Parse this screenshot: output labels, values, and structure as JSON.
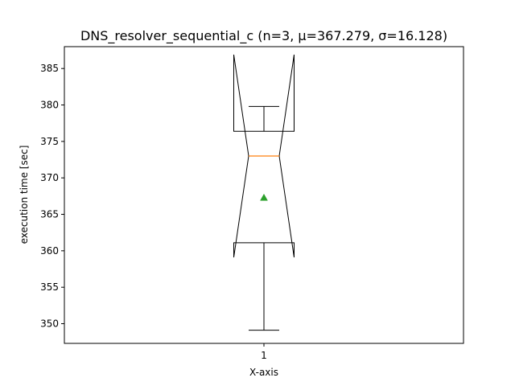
{
  "chart_data": {
    "type": "boxplot",
    "title": "DNS_resolver_sequential_c (n=3, μ=367.279, σ=16.128)",
    "xlabel": "X-axis",
    "ylabel": "execution time [sec]",
    "ylim": [
      347.3,
      388.0
    ],
    "categories": [
      "1"
    ],
    "y_ticks": [
      350,
      355,
      360,
      365,
      370,
      375,
      380,
      385
    ],
    "notched": true,
    "box": {
      "whisker_low": 349.1,
      "q1": 361.1,
      "median": 373.0,
      "q3": 376.4,
      "whisker_high": 379.8,
      "notch_low": 359.1,
      "notch_high": 386.9,
      "mean": 367.279
    },
    "colors": {
      "box": "#000000",
      "median": "#ff7f0e",
      "mean": "#2ca02c"
    },
    "grid": false
  }
}
